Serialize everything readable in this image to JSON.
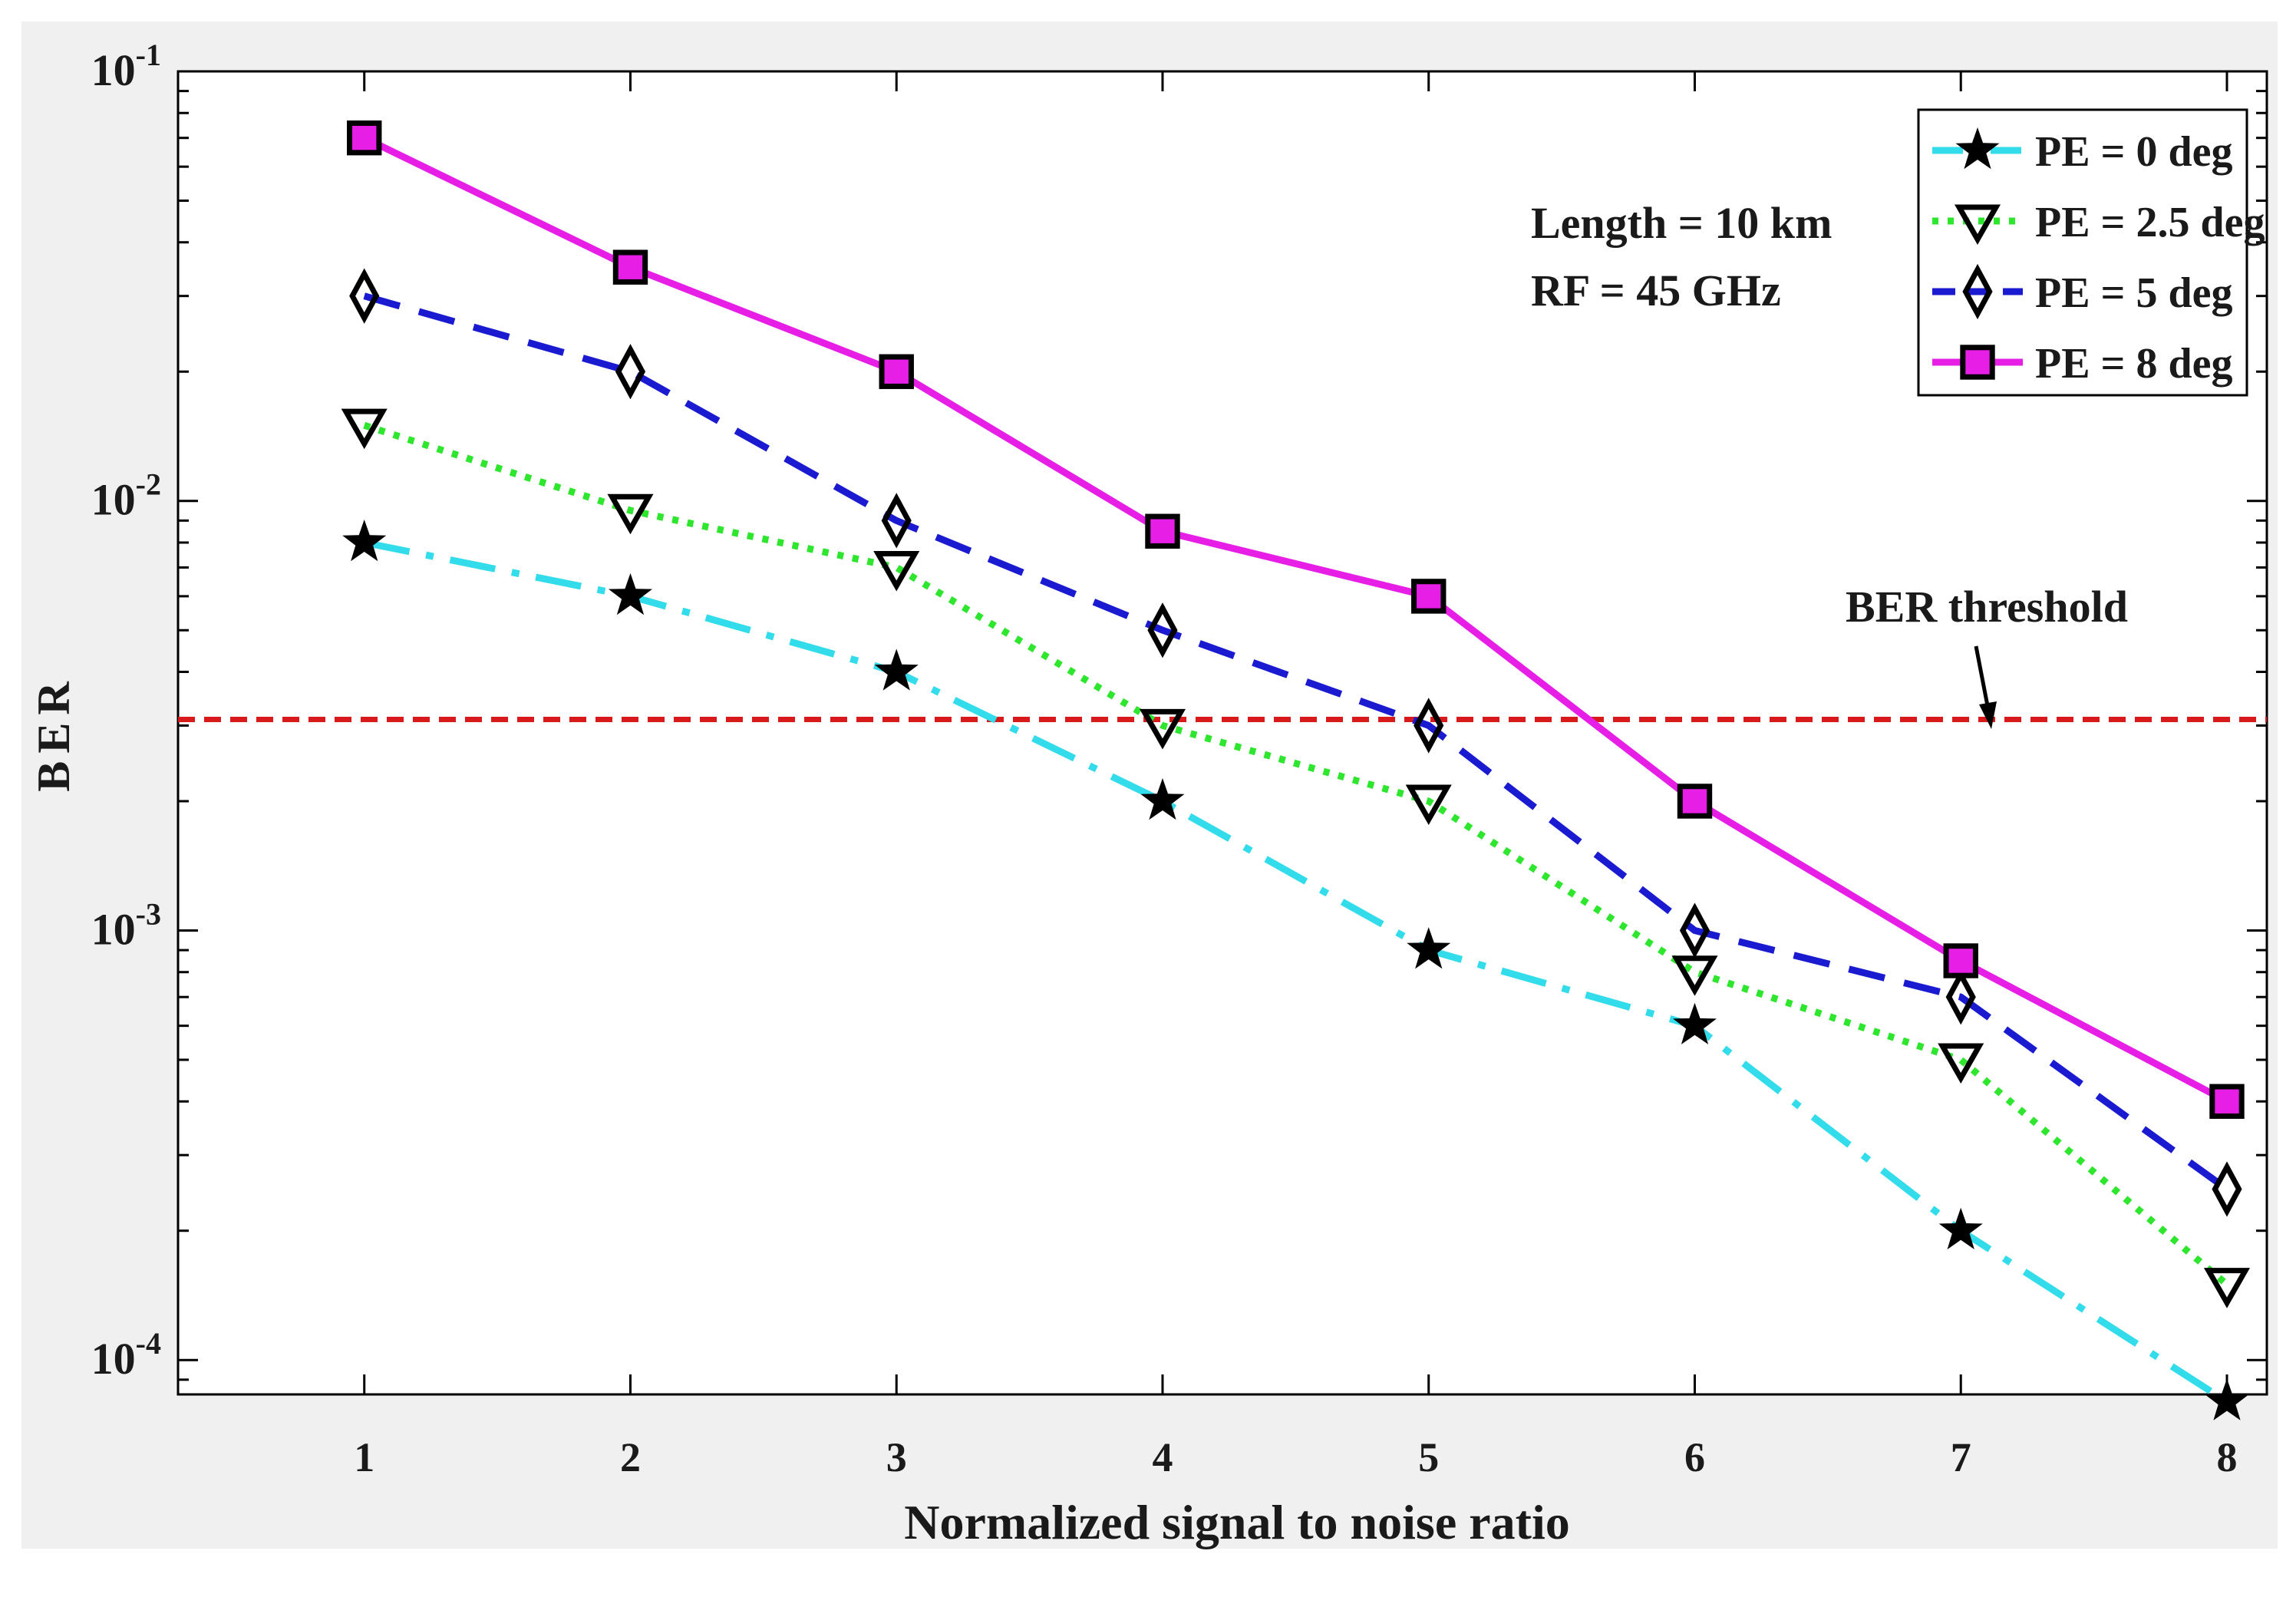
{
  "chart_data": {
    "type": "line",
    "xlabel": "Normalized signal to noise ratio",
    "ylabel": "BER",
    "yscale": "log",
    "xlim": [
      0.3,
      8.15
    ],
    "ylim_exp": [
      -4.08,
      -1
    ],
    "x_ticks": [
      {
        "v": 1,
        "label": "1"
      },
      {
        "v": 2,
        "label": "2"
      },
      {
        "v": 3,
        "label": "3"
      },
      {
        "v": 4,
        "label": "4"
      },
      {
        "v": 5,
        "label": "5"
      },
      {
        "v": 6,
        "label": "6"
      },
      {
        "v": 7,
        "label": "7"
      },
      {
        "v": 8,
        "label": "8"
      }
    ],
    "y_ticks": [
      {
        "exp": -1,
        "base": "10",
        "sup": "-1"
      },
      {
        "exp": -2,
        "base": "10",
        "sup": "-2"
      },
      {
        "exp": -3,
        "base": "10",
        "sup": "-3"
      },
      {
        "exp": -4,
        "base": "10",
        "sup": "-4"
      }
    ],
    "x": [
      1,
      2,
      3,
      4,
      5,
      6,
      7,
      8
    ],
    "series": [
      {
        "name": "PE = 0 deg",
        "color": "#33dcea",
        "dash": "cyan-dashdot",
        "marker": "star",
        "values": [
          0.008,
          0.006,
          0.004,
          0.002,
          0.0009,
          0.0006,
          0.0002,
          8e-05
        ]
      },
      {
        "name": "PE = 2.5 deg",
        "color": "#2ee62e",
        "dash": "dotted",
        "marker": "triangle-down",
        "values": [
          0.015,
          0.0095,
          0.007,
          0.003,
          0.002,
          0.0008,
          0.0005,
          0.00015
        ]
      },
      {
        "name": "PE = 5 deg",
        "color": "#1a1ad1",
        "dash": "dashed",
        "marker": "diamond",
        "values": [
          0.03,
          0.02,
          0.009,
          0.005,
          0.003,
          0.001,
          0.0007,
          0.00025
        ]
      },
      {
        "name": "PE = 8 deg",
        "color": "#e61ee6",
        "dash": "solid",
        "marker": "square",
        "values": [
          0.07,
          0.035,
          0.02,
          0.0085,
          0.006,
          0.002,
          0.00085,
          0.0004
        ]
      }
    ],
    "threshold": {
      "value": 0.0031,
      "color": "#d91a1a",
      "label": "BER threshold"
    },
    "annotations": {
      "line1": "Length = 10 km",
      "line2": "RF = 45 GHz"
    },
    "legend_position": "top-right"
  }
}
